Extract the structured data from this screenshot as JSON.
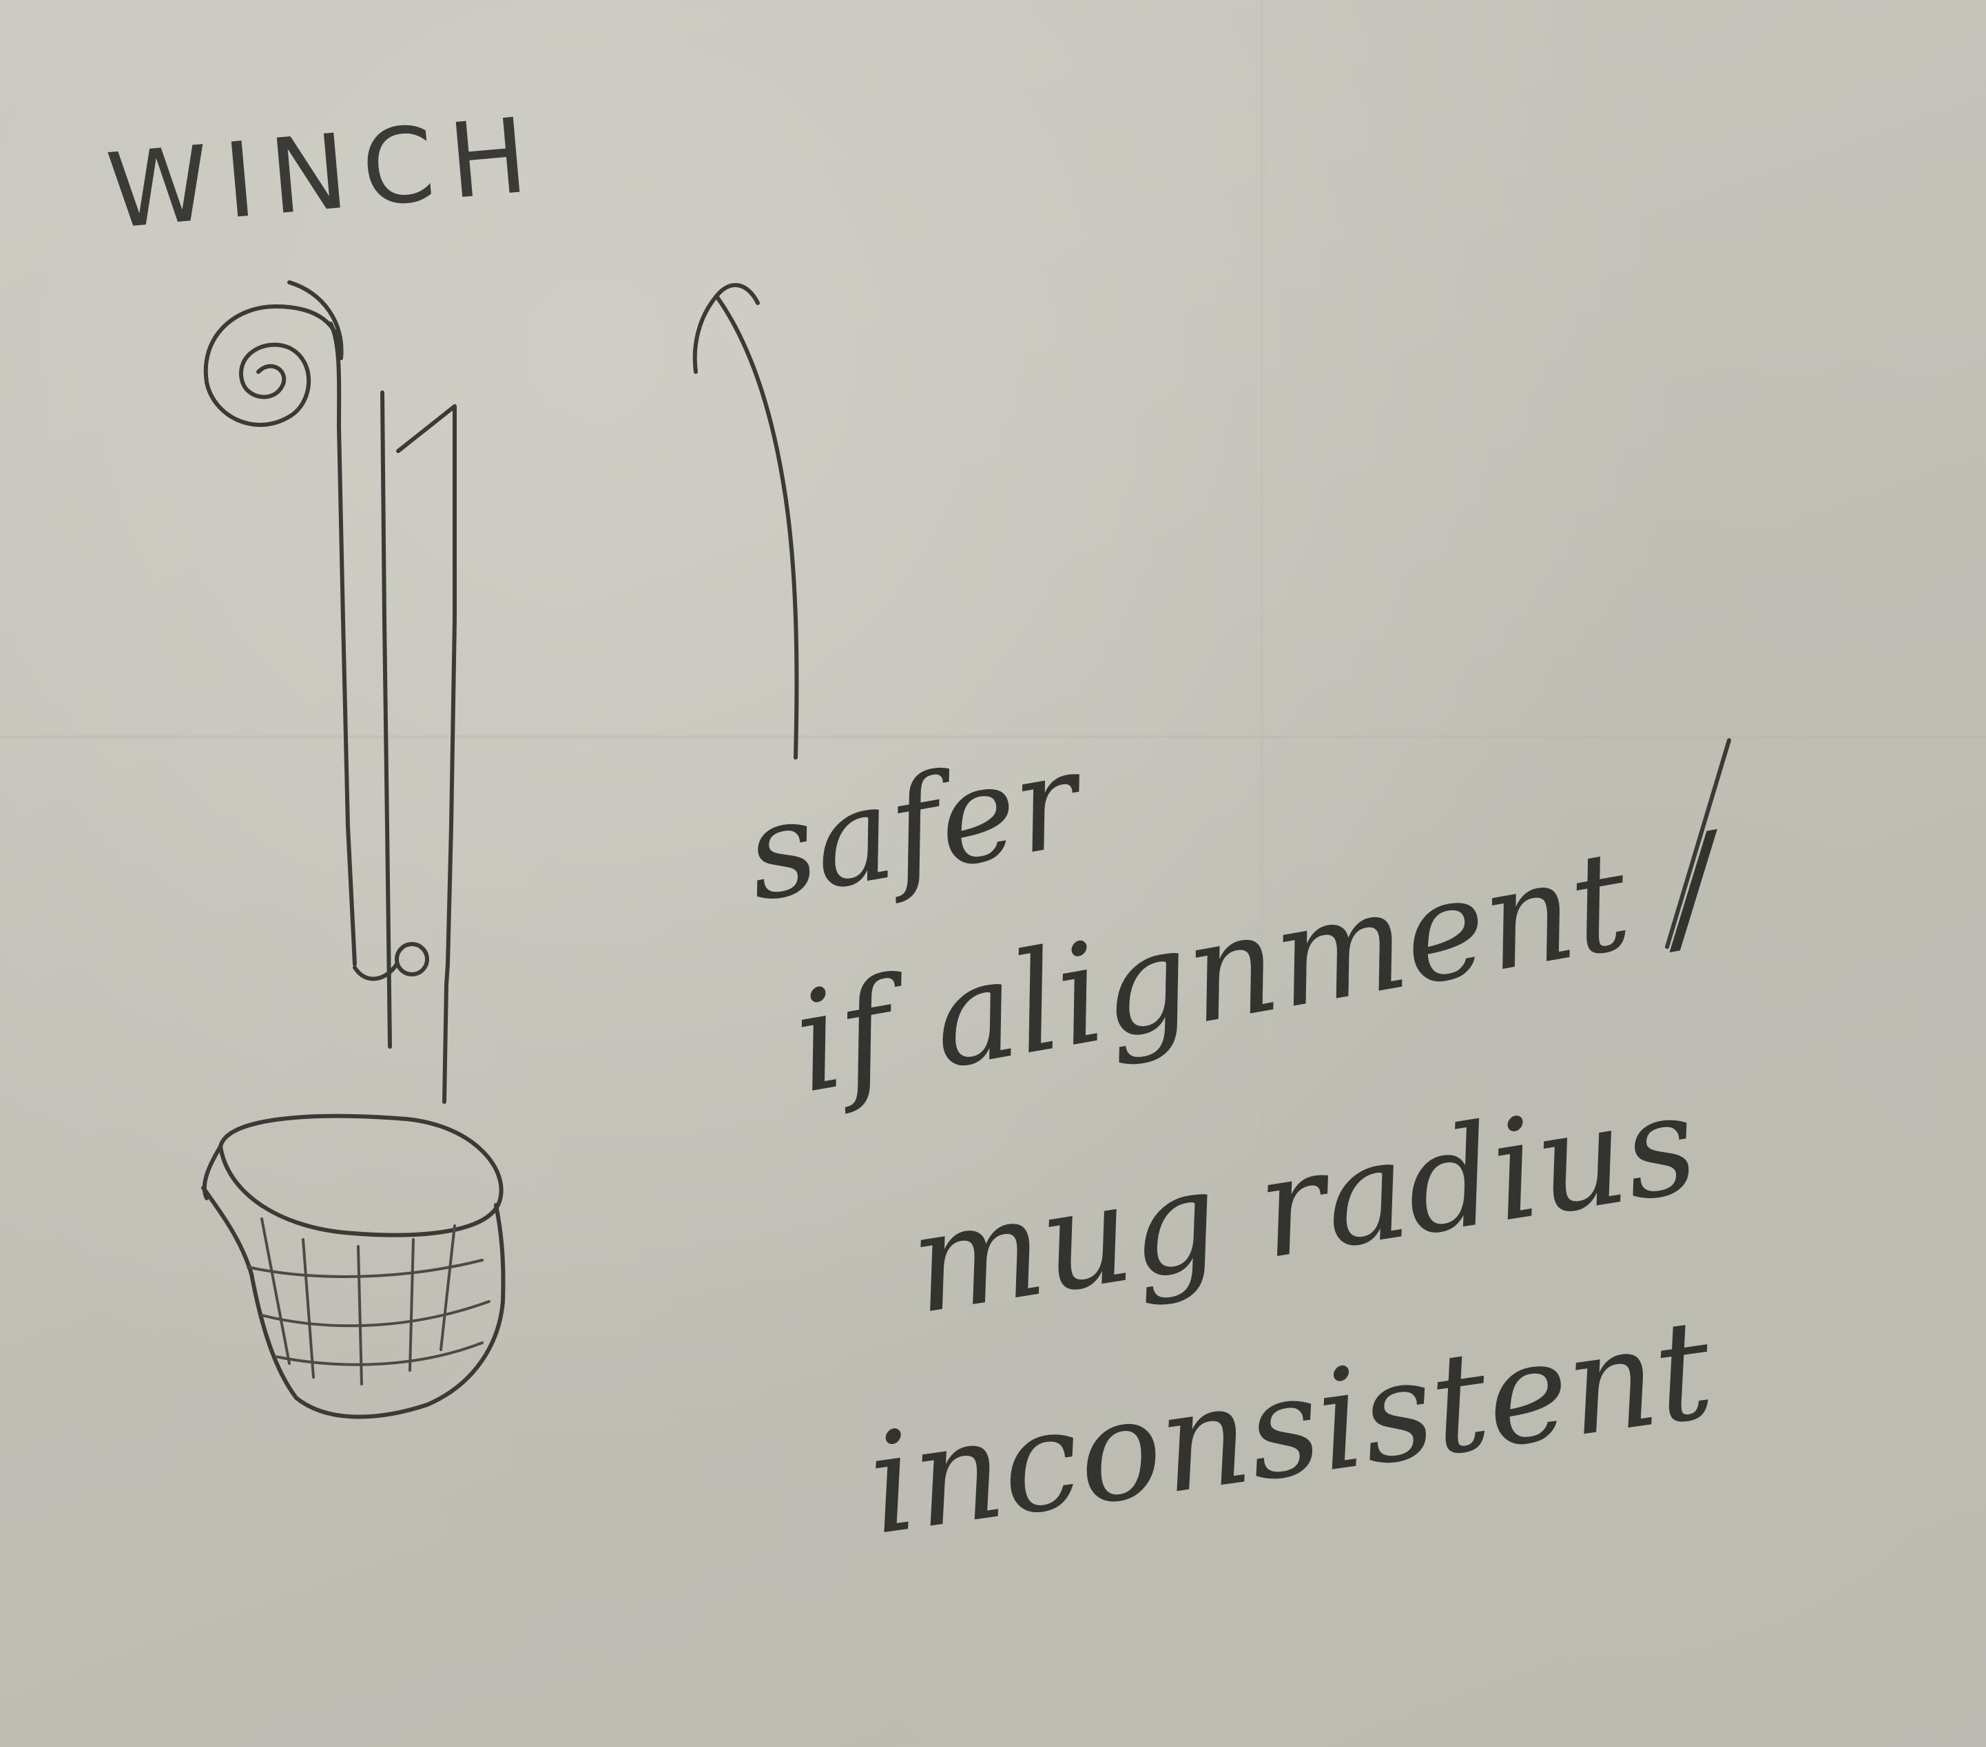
{
  "diagram": {
    "winch_label": "WINCH",
    "note_lines": [
      "safer",
      "if alignment /",
      "mug radius",
      "inconsistent"
    ]
  },
  "colors": {
    "paper": "#c4c3ba",
    "pencil": "#3a3a37"
  },
  "icons": {
    "winch": "spiral-winch-icon",
    "pulley": "pulley-icon",
    "mug": "mug-basket-icon",
    "arrow": "up-arrow-icon"
  }
}
